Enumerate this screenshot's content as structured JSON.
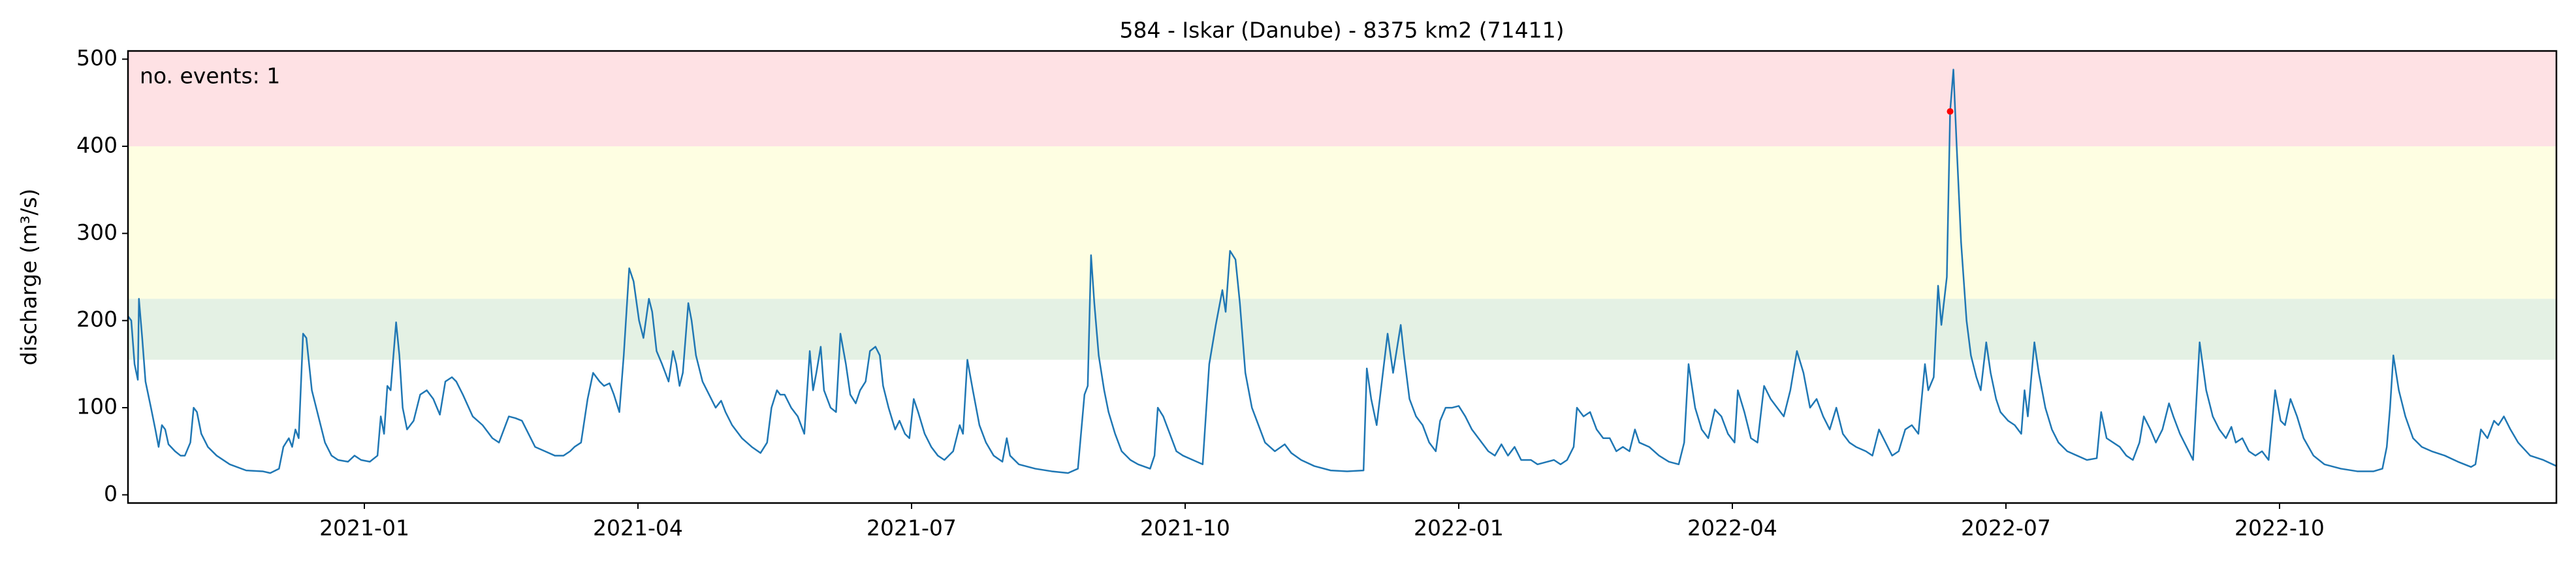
{
  "chart_data": {
    "type": "line",
    "title": "584 - Iskar (Danube) - 8375 km2 (71411)",
    "y_label": "discharge (m³/s)",
    "annotation": {
      "text": "no. events: 1",
      "color": "#e00000"
    },
    "xlim": [
      2020.784,
      2023.003
    ],
    "xticks": [
      {
        "value": 2021.0,
        "label": "2021-01"
      },
      {
        "value": 2021.25,
        "label": "2021-04"
      },
      {
        "value": 2021.5,
        "label": "2021-07"
      },
      {
        "value": 2021.75,
        "label": "2021-10"
      },
      {
        "value": 2022.0,
        "label": "2022-01"
      },
      {
        "value": 2022.25,
        "label": "2022-04"
      },
      {
        "value": 2022.5,
        "label": "2022-07"
      },
      {
        "value": 2022.75,
        "label": "2022-10"
      }
    ],
    "ylim": [
      -9.4,
      509.4
    ],
    "yticks": [
      0,
      100,
      200,
      300,
      400,
      500
    ],
    "bands": [
      {
        "from": 155,
        "to": 225,
        "color": "#e4f1e4"
      },
      {
        "from": 225,
        "to": 400,
        "color": "#fefee2"
      },
      {
        "from": 400,
        "to": 509.4,
        "color": "#fee1e4"
      }
    ],
    "series": [
      {
        "color": "#1f77b4",
        "x": [
          2020.784,
          2020.787,
          2020.79,
          2020.793,
          2020.794,
          2020.797,
          2020.8,
          2020.805,
          2020.809,
          2020.812,
          2020.815,
          2020.818,
          2020.821,
          2020.827,
          2020.832,
          2020.836,
          2020.841,
          2020.844,
          2020.847,
          2020.851,
          2020.857,
          2020.865,
          2020.877,
          2020.892,
          2020.907,
          2020.914,
          2020.922,
          2020.926,
          2020.931,
          2020.934,
          2020.937,
          2020.94,
          2020.944,
          2020.947,
          2020.952,
          2020.958,
          2020.964,
          2020.97,
          2020.976,
          2020.985,
          2020.991,
          2020.997,
          2021.005,
          2021.012,
          2021.015,
          2021.018,
          2021.021,
          2021.024,
          2021.029,
          2021.032,
          2021.035,
          2021.039,
          2021.045,
          2021.051,
          2021.057,
          2021.063,
          2021.069,
          2021.074,
          2021.08,
          2021.084,
          2021.09,
          2021.099,
          2021.108,
          2021.117,
          2021.123,
          2021.132,
          2021.138,
          2021.144,
          2021.15,
          2021.156,
          2021.165,
          2021.174,
          2021.182,
          2021.188,
          2021.192,
          2021.198,
          2021.204,
          2021.209,
          2021.215,
          2021.219,
          2021.224,
          2021.228,
          2021.233,
          2021.237,
          2021.242,
          2021.246,
          2021.251,
          2021.255,
          2021.26,
          2021.263,
          2021.267,
          2021.272,
          2021.278,
          2021.282,
          2021.285,
          2021.288,
          2021.291,
          2021.296,
          2021.299,
          2021.303,
          2021.309,
          2021.315,
          2021.321,
          2021.326,
          2021.33,
          2021.336,
          2021.345,
          2021.354,
          2021.362,
          2021.368,
          2021.372,
          2021.377,
          2021.38,
          2021.384,
          2021.39,
          2021.396,
          2021.402,
          2021.407,
          2021.41,
          2021.413,
          2021.417,
          2021.42,
          2021.426,
          2021.431,
          2021.435,
          2021.44,
          2021.444,
          2021.449,
          2021.453,
          2021.458,
          2021.462,
          2021.467,
          2021.471,
          2021.474,
          2021.479,
          2021.485,
          2021.489,
          2021.494,
          2021.498,
          2021.502,
          2021.506,
          2021.512,
          2021.518,
          2021.524,
          2021.53,
          2021.538,
          2021.544,
          2021.547,
          2021.551,
          2021.556,
          2021.562,
          2021.568,
          2021.575,
          2021.583,
          2021.587,
          2021.59,
          2021.598,
          2021.613,
          2021.628,
          2021.643,
          2021.652,
          2021.658,
          2021.661,
          2021.664,
          2021.667,
          2021.671,
          2021.676,
          2021.68,
          2021.686,
          2021.692,
          2021.7,
          2021.707,
          2021.718,
          2021.722,
          2021.725,
          2021.73,
          2021.736,
          2021.742,
          2021.748,
          2021.757,
          2021.766,
          2021.772,
          2021.778,
          2021.784,
          2021.787,
          2021.791,
          2021.796,
          2021.8,
          2021.805,
          2021.811,
          2021.817,
          2021.823,
          2021.832,
          2021.841,
          2021.847,
          2021.856,
          2021.868,
          2021.883,
          2021.898,
          2021.913,
          2021.916,
          2021.92,
          2021.925,
          2021.935,
          2021.94,
          2021.947,
          2021.95,
          2021.955,
          2021.961,
          2021.967,
          2021.973,
          2021.979,
          2021.983,
          2021.988,
          2021.994,
          2022.0,
          2022.006,
          2022.012,
          2022.018,
          2022.027,
          2022.033,
          2022.039,
          2022.045,
          2022.051,
          2022.057,
          2022.066,
          2022.072,
          2022.081,
          2022.087,
          2022.093,
          2022.099,
          2022.105,
          2022.108,
          2022.114,
          2022.12,
          2022.126,
          2022.132,
          2022.138,
          2022.144,
          2022.15,
          2022.156,
          2022.161,
          2022.165,
          2022.174,
          2022.183,
          2022.192,
          2022.201,
          2022.206,
          2022.21,
          2022.216,
          2022.222,
          2022.228,
          2022.234,
          2022.24,
          2022.246,
          2022.252,
          2022.255,
          2022.261,
          2022.267,
          2022.273,
          2022.279,
          2022.285,
          2022.291,
          2022.297,
          2022.303,
          2022.309,
          2022.315,
          2022.321,
          2022.327,
          2022.333,
          2022.339,
          2022.345,
          2022.351,
          2022.357,
          2022.363,
          2022.372,
          2022.378,
          2022.384,
          2022.39,
          2022.396,
          2022.402,
          2022.408,
          2022.414,
          2022.42,
          2022.426,
          2022.429,
          2022.434,
          2022.438,
          2022.441,
          2022.446,
          2022.449,
          2022.452,
          2022.455,
          2022.459,
          2022.464,
          2022.468,
          2022.473,
          2022.477,
          2022.482,
          2022.486,
          2022.491,
          2022.495,
          2022.502,
          2022.508,
          2022.514,
          2022.517,
          2022.52,
          2022.526,
          2022.53,
          2022.536,
          2022.542,
          2022.548,
          2022.556,
          2022.565,
          2022.574,
          2022.583,
          2022.587,
          2022.592,
          2022.598,
          2022.604,
          2022.61,
          2022.616,
          2022.622,
          2022.626,
          2022.632,
          2022.637,
          2022.643,
          2022.649,
          2022.653,
          2022.659,
          2022.665,
          2022.671,
          2022.677,
          2022.683,
          2022.689,
          2022.695,
          2022.701,
          2022.706,
          2022.71,
          2022.716,
          2022.722,
          2022.728,
          2022.734,
          2022.74,
          2022.746,
          2022.751,
          2022.755,
          2022.76,
          2022.766,
          2022.772,
          2022.781,
          2022.791,
          2022.806,
          2022.821,
          2022.836,
          2022.844,
          2022.848,
          2022.851,
          2022.854,
          2022.859,
          2022.865,
          2022.872,
          2022.88,
          2022.889,
          2022.901,
          2022.913,
          2022.925,
          2022.929,
          2022.934,
          2022.94,
          2022.946,
          2022.95,
          2022.955,
          2022.961,
          2022.968,
          2022.979,
          2022.991,
          2023.003
        ],
        "values": [
          205,
          200,
          150,
          132,
          225,
          180,
          130,
          100,
          75,
          55,
          80,
          75,
          58,
          50,
          45,
          45,
          60,
          100,
          95,
          70,
          55,
          45,
          35,
          28,
          27,
          25,
          30,
          55,
          65,
          55,
          75,
          65,
          185,
          180,
          120,
          90,
          60,
          45,
          40,
          38,
          45,
          40,
          38,
          45,
          90,
          70,
          125,
          120,
          198,
          160,
          100,
          75,
          85,
          115,
          120,
          110,
          92,
          130,
          135,
          130,
          115,
          90,
          80,
          65,
          60,
          90,
          88,
          85,
          70,
          55,
          50,
          45,
          45,
          50,
          55,
          60,
          110,
          140,
          130,
          125,
          128,
          115,
          95,
          160,
          260,
          245,
          200,
          180,
          225,
          210,
          165,
          150,
          130,
          165,
          150,
          125,
          140,
          220,
          200,
          160,
          130,
          115,
          100,
          108,
          95,
          80,
          65,
          55,
          48,
          60,
          100,
          120,
          115,
          115,
          100,
          90,
          70,
          165,
          120,
          140,
          170,
          120,
          100,
          95,
          185,
          150,
          115,
          105,
          120,
          130,
          165,
          170,
          160,
          125,
          100,
          75,
          85,
          70,
          65,
          110,
          95,
          70,
          55,
          45,
          40,
          50,
          80,
          70,
          155,
          120,
          80,
          60,
          45,
          38,
          65,
          45,
          35,
          30,
          27,
          25,
          30,
          115,
          125,
          275,
          220,
          160,
          120,
          95,
          70,
          50,
          40,
          35,
          30,
          45,
          100,
          90,
          70,
          50,
          45,
          40,
          35,
          150,
          195,
          235,
          210,
          280,
          270,
          220,
          140,
          100,
          80,
          60,
          50,
          58,
          48,
          40,
          33,
          28,
          27,
          28,
          145,
          110,
          80,
          185,
          140,
          195,
          160,
          110,
          90,
          80,
          60,
          50,
          85,
          100,
          100,
          102,
          90,
          75,
          65,
          50,
          45,
          58,
          45,
          55,
          40,
          40,
          35,
          38,
          40,
          35,
          40,
          55,
          100,
          90,
          95,
          75,
          65,
          65,
          50,
          55,
          50,
          75,
          60,
          55,
          45,
          38,
          35,
          60,
          150,
          100,
          75,
          65,
          98,
          90,
          70,
          60,
          120,
          95,
          65,
          60,
          125,
          110,
          100,
          90,
          120,
          165,
          140,
          100,
          110,
          90,
          75,
          100,
          70,
          60,
          55,
          50,
          45,
          75,
          60,
          45,
          50,
          75,
          80,
          70,
          150,
          120,
          135,
          240,
          195,
          250,
          440,
          488,
          400,
          290,
          200,
          160,
          135,
          120,
          175,
          140,
          110,
          95,
          85,
          80,
          70,
          120,
          90,
          175,
          140,
          100,
          75,
          60,
          50,
          45,
          40,
          42,
          95,
          65,
          60,
          55,
          45,
          40,
          60,
          90,
          75,
          60,
          75,
          105,
          90,
          70,
          55,
          40,
          175,
          120,
          90,
          75,
          65,
          78,
          60,
          65,
          50,
          45,
          50,
          40,
          120,
          85,
          80,
          110,
          90,
          65,
          45,
          35,
          30,
          27,
          27,
          30,
          55,
          100,
          160,
          120,
          90,
          65,
          55,
          50,
          45,
          38,
          32,
          35,
          75,
          65,
          85,
          80,
          90,
          75,
          60,
          45,
          40,
          33
        ]
      }
    ],
    "events": {
      "color": "#ff0000",
      "x": [
        2022.449
      ],
      "values": [
        440
      ]
    }
  }
}
